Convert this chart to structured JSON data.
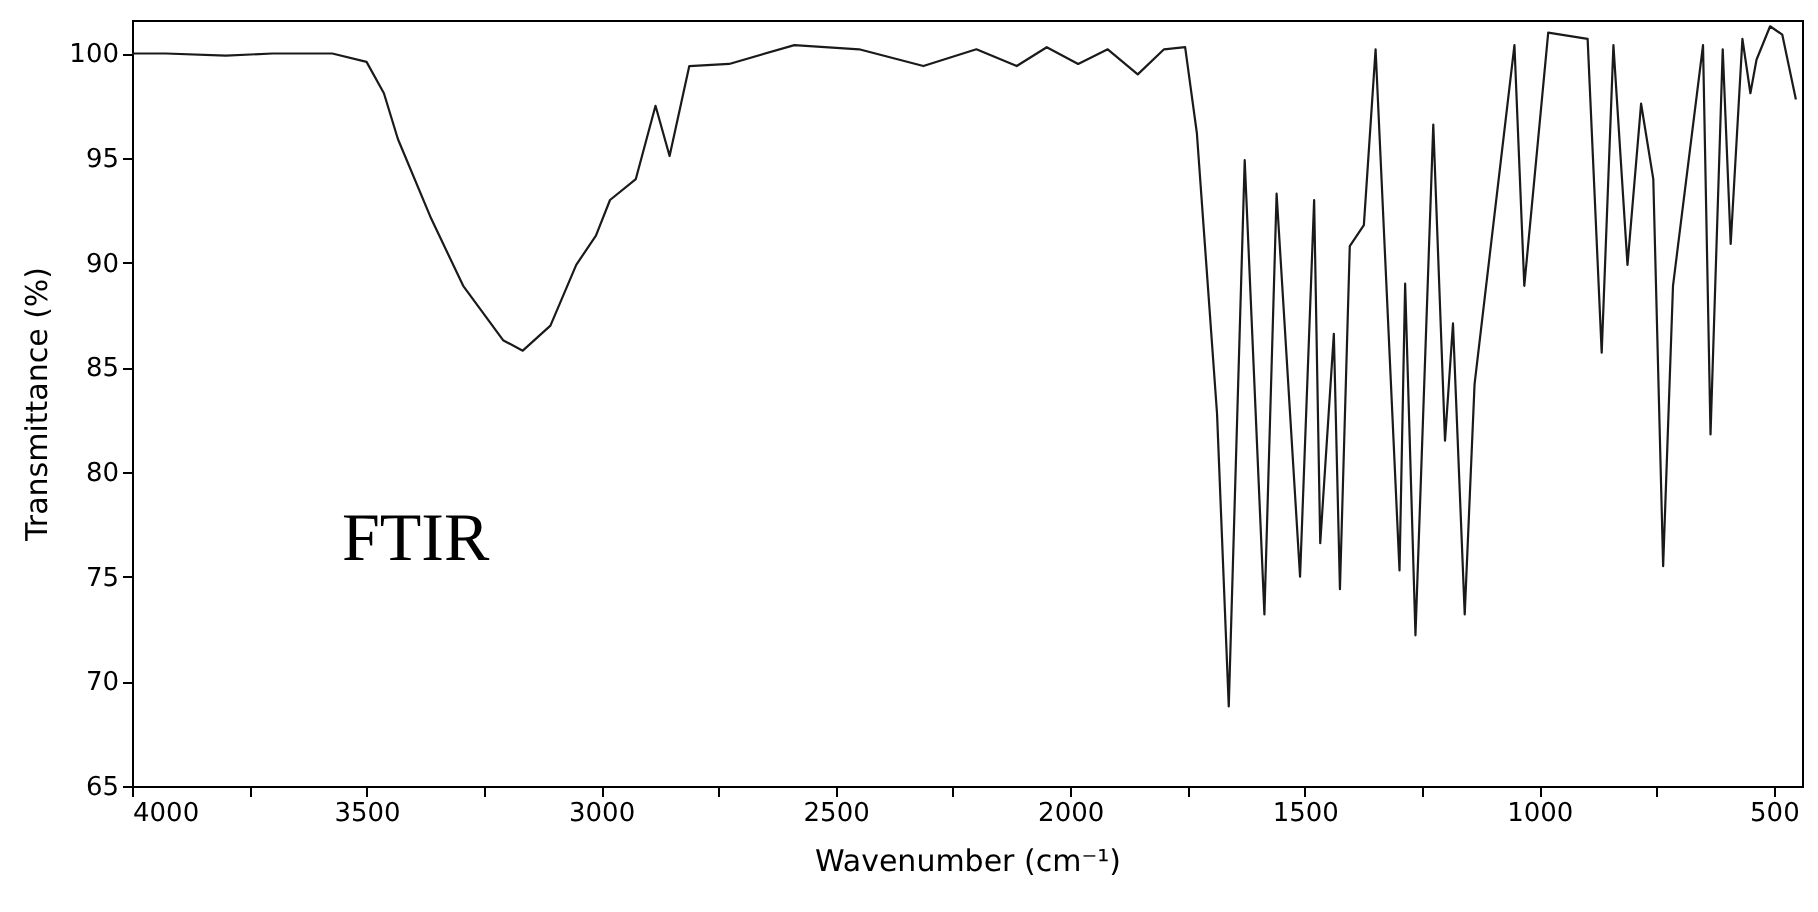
{
  "chart_data": {
    "type": "line",
    "xlabel": "Wavenumber (cm⁻¹)",
    "ylabel": "Transmittance (%)",
    "annotations": [
      "FTIR"
    ],
    "color": "#1a1a1a",
    "x": [
      4000,
      3928,
      3800,
      3700,
      3573,
      3500,
      3463,
      3433,
      3362,
      3294,
      3209,
      3167,
      3108,
      3053,
      3011,
      2981,
      2926,
      2884,
      2854,
      2812,
      2727,
      2588,
      2450,
      2313,
      2200,
      2114,
      2050,
      1983,
      1920,
      1856,
      1800,
      1755,
      1730,
      1687,
      1662,
      1628,
      1586,
      1560,
      1510,
      1480,
      1467,
      1438,
      1425,
      1404,
      1374,
      1349,
      1298,
      1286,
      1264,
      1226,
      1201,
      1184,
      1159,
      1138,
      1053,
      1032,
      981,
      897,
      867,
      842,
      812,
      783,
      757,
      736,
      715,
      651,
      635,
      609,
      592,
      567,
      550,
      537,
      508,
      482,
      453
    ],
    "values": [
      100,
      100,
      99.9,
      100,
      100,
      99.6,
      98.1,
      95.9,
      92.1,
      88.9,
      86.3,
      85.8,
      87.0,
      89.9,
      91.3,
      93.0,
      94.0,
      97.5,
      95.1,
      99.4,
      99.5,
      100.4,
      100.2,
      99.4,
      100.2,
      99.4,
      100.3,
      99.5,
      100.2,
      99.0,
      100.2,
      100.3,
      96.2,
      82.8,
      68.8,
      94.9,
      73.2,
      93.3,
      75.0,
      93.0,
      76.6,
      86.6,
      74.4,
      90.8,
      91.8,
      100.2,
      75.3,
      89.0,
      72.2,
      96.6,
      81.5,
      87.1,
      73.2,
      84.2,
      100.4,
      88.9,
      101.0,
      100.7,
      85.7,
      100.4,
      89.9,
      97.6,
      94.0,
      75.5,
      88.9,
      100.4,
      81.8,
      100.2,
      90.9,
      100.7,
      98.1,
      99.7,
      101.3,
      100.9,
      97.8
    ],
    "xlim": [
      4000,
      440
    ],
    "ylim": [
      65,
      101.6
    ],
    "xticks": [
      4000,
      {
        "value": 3750,
        "label": null
      },
      3500,
      {
        "value": 3250,
        "label": null
      },
      3000,
      {
        "value": 2750,
        "label": null
      },
      2500,
      {
        "value": 2250,
        "label": null
      },
      2000,
      {
        "value": 1750,
        "label": null
      },
      1500,
      {
        "value": 1250,
        "label": null
      },
      1000,
      {
        "value": 750,
        "label": null
      },
      500
    ],
    "yticks": [
      65,
      70,
      75,
      80,
      85,
      90,
      95,
      100
    ],
    "grid": false
  }
}
